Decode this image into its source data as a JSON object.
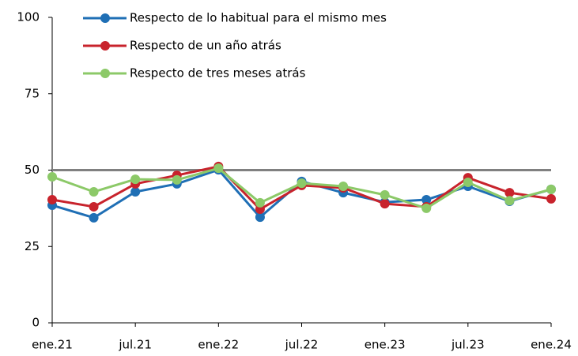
{
  "chart_data": {
    "type": "line",
    "categories": [
      "ene.21",
      null,
      "jul.21",
      null,
      "ene.22",
      null,
      "jul.22",
      null,
      "ene.23",
      null,
      "jul.23",
      null,
      "ene.24"
    ],
    "series": [
      {
        "name": "Respecto de lo habitual para el mismo mes",
        "color": "#1f6fb5",
        "values": [
          38.5,
          34.4,
          42.9,
          45.5,
          50.1,
          34.6,
          46.3,
          42.6,
          39.5,
          40.3,
          44.7,
          39.8,
          43.7
        ]
      },
      {
        "name": "Respecto de un año atrás",
        "color": "#c8232c",
        "values": [
          40.3,
          38,
          45.5,
          48.3,
          51.2,
          37.2,
          45,
          44.2,
          39,
          38,
          47.5,
          42.6,
          40.6
        ]
      },
      {
        "name": "Respecto de tres meses atrás",
        "color": "#8cc968",
        "values": [
          47.8,
          42.9,
          47,
          46.8,
          50.6,
          39.3,
          45.7,
          44.7,
          41.9,
          37.5,
          46,
          40,
          43.7
        ]
      }
    ],
    "reference_line": {
      "value": 50,
      "color": "#808080"
    },
    "ylim": [
      0,
      100
    ],
    "yticks": [
      0,
      25,
      50,
      75,
      100
    ],
    "grid": false,
    "legend": "top"
  }
}
